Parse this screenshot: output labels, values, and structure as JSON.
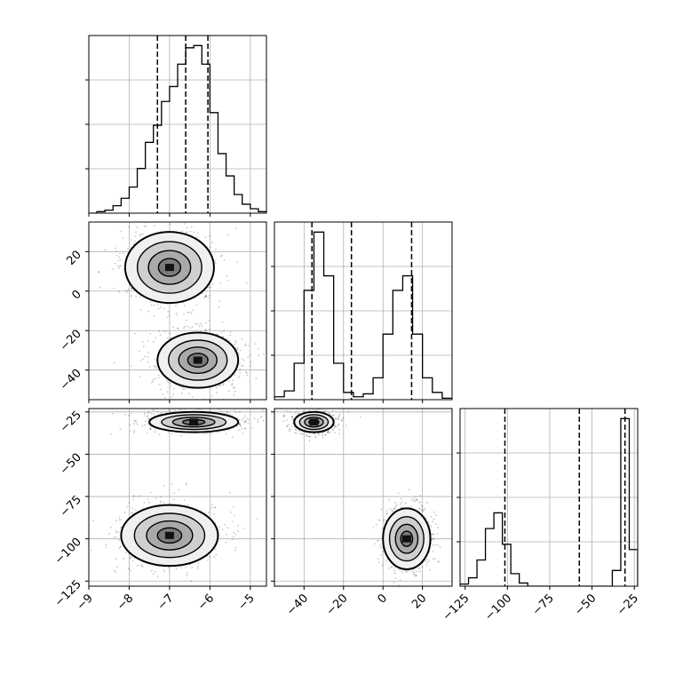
{
  "chart_data": {
    "type": "corner",
    "grid": true,
    "quantile_lines": "dashed",
    "parameters": [
      {
        "range": [
          -9,
          -4.6
        ],
        "ticks": [
          -9,
          -8,
          -7,
          -6,
          -5
        ],
        "tick_labels": [
          "−9",
          "−8",
          "−7",
          "−6",
          "−5"
        ],
        "quantiles": [
          -7.3,
          -6.6,
          -6.05
        ],
        "histogram": {
          "bin_edges": [
            -9.0,
            -8.8,
            -8.6,
            -8.4,
            -8.2,
            -8.0,
            -7.8,
            -7.6,
            -7.4,
            -7.2,
            -7.0,
            -6.8,
            -6.6,
            -6.4,
            -6.2,
            -6.0,
            -5.8,
            -5.6,
            -5.4,
            -5.2,
            -5.0,
            -4.8,
            -4.6
          ],
          "counts": [
            0,
            2,
            4,
            10,
            20,
            35,
            60,
            95,
            118,
            150,
            170,
            200,
            222,
            225,
            200,
            135,
            80,
            50,
            25,
            12,
            6,
            2
          ]
        }
      },
      {
        "range": [
          -55,
          35
        ],
        "ticks": [
          -40,
          -20,
          0,
          20
        ],
        "tick_labels": [
          "−40",
          "−20",
          "0",
          "20"
        ],
        "quantiles": [
          -36,
          -16,
          14.5
        ],
        "histogram": {
          "bin_edges": [
            -55,
            -50,
            -45,
            -40,
            -35,
            -30,
            -25,
            -20,
            -15,
            -10,
            -5,
            0,
            5,
            10,
            15,
            20,
            25,
            30,
            35
          ],
          "counts": [
            2,
            6,
            25,
            75,
            115,
            85,
            25,
            5,
            2,
            4,
            15,
            45,
            75,
            85,
            45,
            15,
            5,
            1
          ]
        }
      },
      {
        "range": [
          -128,
          -23
        ],
        "ticks": [
          -125,
          -100,
          -75,
          -50,
          -25
        ],
        "tick_labels": [
          "−125",
          "−100",
          "−75",
          "−50",
          "−25"
        ],
        "quantiles": [
          -101.5,
          -57.5,
          -30.5
        ],
        "histogram": {
          "bin_edges": [
            -128,
            -123,
            -118,
            -113,
            -108,
            -103,
            -98,
            -93,
            -88,
            -83,
            -78,
            -73,
            -68,
            -63,
            -58,
            -53,
            -48,
            -43,
            -38,
            -33,
            -28,
            -23
          ],
          "counts": [
            2,
            8,
            25,
            55,
            70,
            40,
            12,
            3,
            0,
            0,
            0,
            0,
            0,
            0,
            0,
            0,
            0,
            0,
            15,
            160,
            35
          ]
        }
      }
    ],
    "joint_modes": {
      "1_0": [
        {
          "cx": -7.0,
          "cy": 12,
          "sx": 0.55,
          "sy": 9
        },
        {
          "cx": -6.3,
          "cy": -35,
          "sx": 0.5,
          "sy": 7
        }
      ],
      "2_0": [
        {
          "cx": -6.4,
          "cy": -31,
          "sx": 0.55,
          "sy": 3
        },
        {
          "cx": -7.0,
          "cy": -98,
          "sx": 0.6,
          "sy": 9
        }
      ],
      "2_1": [
        {
          "cx": -35,
          "cy": -31,
          "sx": 5,
          "sy": 3
        },
        {
          "cx": 12,
          "cy": -100,
          "sx": 6,
          "sy": 9
        }
      ]
    }
  }
}
